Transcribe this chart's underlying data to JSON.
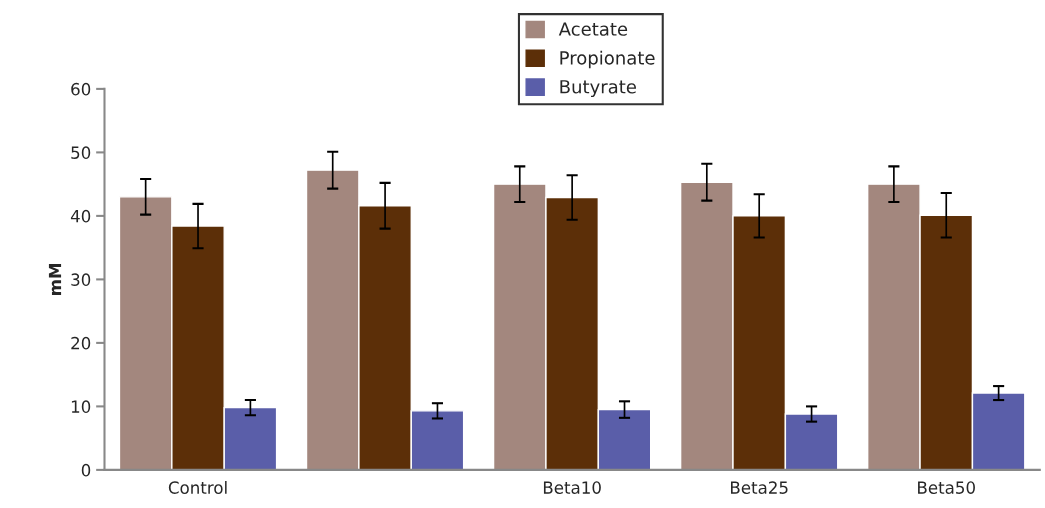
{
  "chart_data": {
    "type": "bar",
    "ylabel": "mM",
    "categories": [
      "Control",
      null,
      "Beta10",
      "Beta25",
      "Beta50"
    ],
    "series": [
      {
        "name": "Acetate",
        "color": "#a3877e",
        "values": [
          43.0,
          47.2,
          45.0,
          45.3,
          45.0
        ],
        "errors": [
          2.8,
          2.9,
          2.8,
          2.9,
          2.8
        ]
      },
      {
        "name": "Propionate",
        "color": "#5c2f08",
        "values": [
          38.4,
          41.6,
          42.9,
          40.0,
          40.1
        ],
        "errors": [
          3.5,
          3.6,
          3.5,
          3.4,
          3.5
        ]
      },
      {
        "name": "Butyrate",
        "color": "#5a5ea9",
        "values": [
          9.8,
          9.3,
          9.5,
          8.8,
          12.1
        ],
        "errors": [
          1.2,
          1.2,
          1.3,
          1.2,
          1.1
        ]
      }
    ],
    "ylim": [
      0,
      60
    ],
    "yticks": [
      0,
      10,
      20,
      30,
      40,
      50,
      60
    ],
    "grid": false,
    "legend": "top"
  }
}
